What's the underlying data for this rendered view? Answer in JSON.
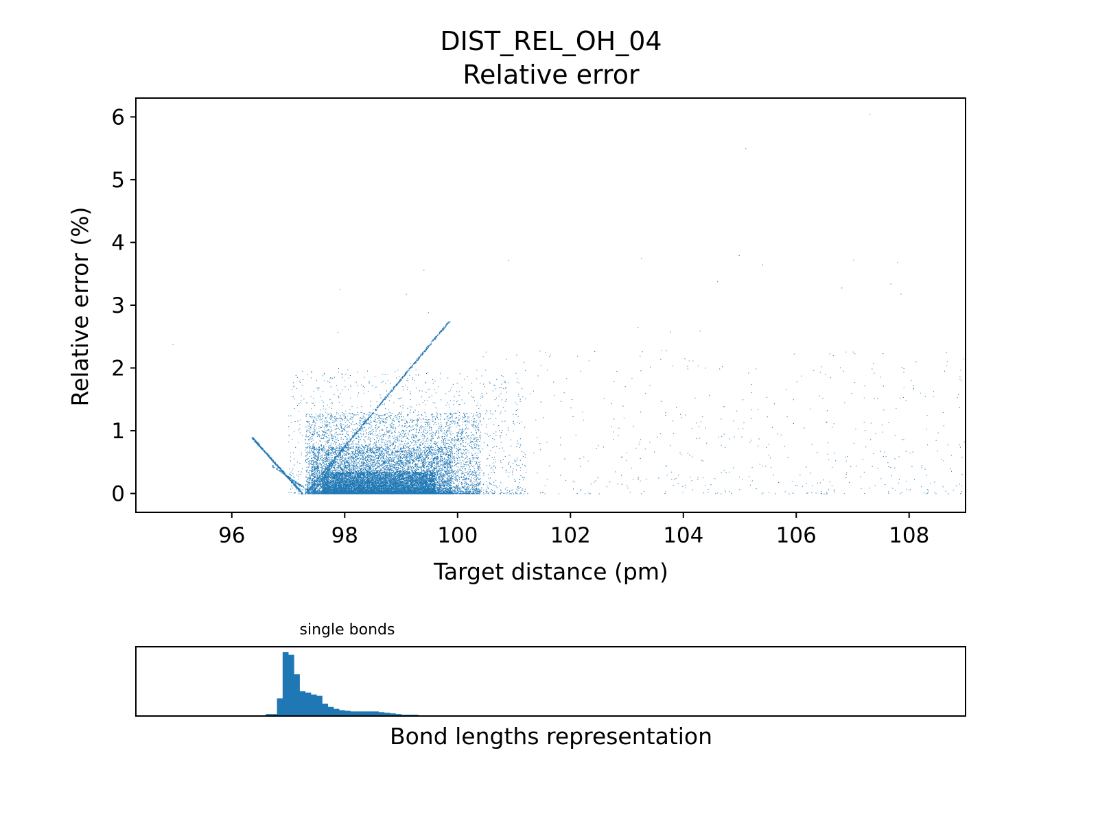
{
  "chart_data": [
    {
      "type": "scatter",
      "title": "DIST_REL_OH_04",
      "subtitle": "Relative error",
      "xlabel": "Target distance (pm)",
      "ylabel": "Relative error (%)",
      "xlim": [
        94.3,
        109.0
      ],
      "ylim": [
        -0.3,
        6.3
      ],
      "xticks": [
        "96",
        "98",
        "100",
        "102",
        "104",
        "106",
        "108"
      ],
      "yticks": [
        "0",
        "1",
        "2",
        "3",
        "4",
        "5",
        "6"
      ],
      "grid": false,
      "color": "#1f77b4",
      "regions": [
        {
          "x": [
            97.6,
            99.6
          ],
          "y": [
            0.0,
            0.35
          ],
          "count": 14000
        },
        {
          "x": [
            97.4,
            99.9
          ],
          "y": [
            0.0,
            0.75
          ],
          "count": 9000
        },
        {
          "x": [
            97.3,
            100.4
          ],
          "y": [
            0.0,
            1.3
          ],
          "count": 6000
        },
        {
          "x": [
            97.0,
            101.2
          ],
          "y": [
            0.0,
            2.0
          ],
          "count": 1400
        },
        {
          "x": [
            100.4,
            109.0
          ],
          "y": [
            0.0,
            2.3
          ],
          "count": 520
        },
        {
          "x": [
            96.6,
            108.9
          ],
          "y": [
            0.0,
            3.8
          ],
          "count": 45
        }
      ],
      "lines": [
        {
          "x": [
            96.35,
            97.25
          ],
          "y": [
            0.9,
            0.0
          ],
          "count": 600
        },
        {
          "x": [
            97.3,
            99.85
          ],
          "y": [
            0.0,
            2.75
          ],
          "count": 900
        },
        {
          "x": [
            96.7,
            97.35
          ],
          "y": [
            0.45,
            0.05
          ],
          "count": 150
        },
        {
          "x": [
            97.45,
            97.8
          ],
          "y": [
            0.05,
            0.5
          ],
          "count": 120
        }
      ],
      "outliers": [
        {
          "x": 94.95,
          "y": 2.38
        },
        {
          "x": 107.3,
          "y": 6.05
        },
        {
          "x": 105.1,
          "y": 5.5
        },
        {
          "x": 100.9,
          "y": 3.72
        },
        {
          "x": 103.25,
          "y": 3.75
        },
        {
          "x": 104.6,
          "y": 3.38
        },
        {
          "x": 105.4,
          "y": 3.65
        },
        {
          "x": 106.8,
          "y": 3.28
        },
        {
          "x": 107.85,
          "y": 3.18
        }
      ]
    },
    {
      "type": "bar",
      "title": "single bonds",
      "xlabel": "Bond lengths representation",
      "ylabel": "",
      "xlim": [
        94.3,
        109.0
      ],
      "bin_start": 96.6,
      "bin_width": 0.1,
      "values": [
        0.03,
        0.03,
        0.27,
        0.98,
        0.94,
        0.64,
        0.38,
        0.36,
        0.33,
        0.31,
        0.19,
        0.14,
        0.11,
        0.09,
        0.08,
        0.07,
        0.07,
        0.07,
        0.07,
        0.07,
        0.06,
        0.05,
        0.04,
        0.03,
        0.02,
        0.02,
        0.02,
        0.01,
        0.01,
        0.01,
        0.01,
        0.01,
        0.01
      ],
      "color": "#1f77b4"
    }
  ]
}
